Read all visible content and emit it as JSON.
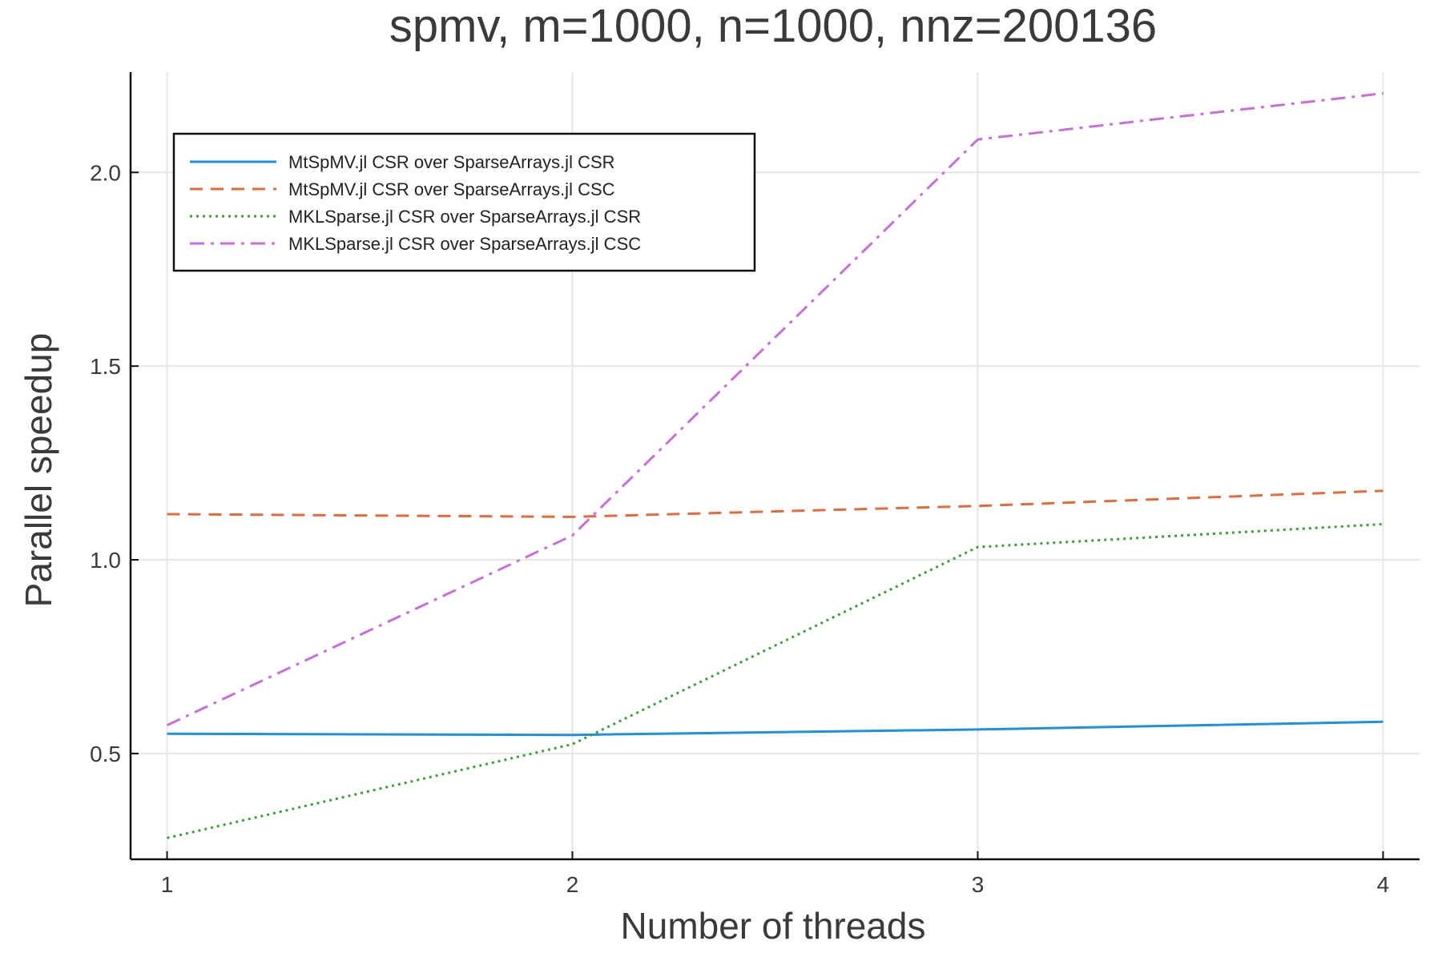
{
  "chart_data": {
    "type": "line",
    "title": "spmv, m=1000, n=1000, nnz=200136",
    "xlabel": "Number of threads",
    "ylabel": "Parallel speedup",
    "x": [
      1,
      2,
      3,
      4
    ],
    "xticks": [
      "1",
      "2",
      "3",
      "4"
    ],
    "yticks": [
      "0.5",
      "1.0",
      "1.5",
      "2.0"
    ],
    "ytick_values": [
      0.5,
      1.0,
      1.5,
      2.0
    ],
    "xlim": [
      0.91,
      4.09
    ],
    "ylim": [
      0.227,
      2.259
    ],
    "grid": true,
    "legend_position": "top-left",
    "series": [
      {
        "name": "MtSpMV.jl CSR over SparseArrays.jl CSR",
        "values": [
          0.551,
          0.548,
          0.562,
          0.582
        ],
        "color": "#1f8fe0",
        "dash": "solid"
      },
      {
        "name": "MtSpMV.jl CSR over SparseArrays.jl CSC",
        "values": [
          1.118,
          1.111,
          1.139,
          1.178
        ],
        "color": "#e06c3c",
        "dash": "dashed"
      },
      {
        "name": "MKLSparse.jl CSR over SparseArrays.jl CSR",
        "values": [
          0.282,
          0.524,
          1.033,
          1.092
        ],
        "color": "#3a9e3a",
        "dash": "dotted"
      },
      {
        "name": "MKLSparse.jl CSR over SparseArrays.jl CSC",
        "values": [
          0.573,
          1.063,
          2.085,
          2.204
        ],
        "color": "#c66fd8",
        "dash": "dashdot"
      }
    ]
  }
}
